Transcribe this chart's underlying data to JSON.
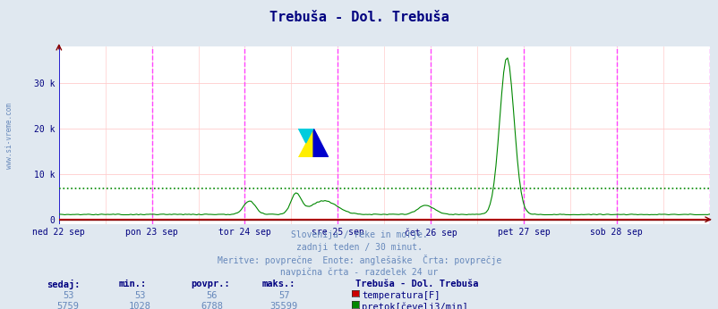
{
  "title": "Trebuša - Dol. Trebuša",
  "title_color": "#000080",
  "background_color": "#e0e8f0",
  "plot_bg_color": "#ffffff",
  "grid_color": "#ffcccc",
  "vline_color": "#ff44ff",
  "x_labels": [
    "ned 22 sep",
    "pon 23 sep",
    "tor 24 sep",
    "sre 25 sep",
    "čet 26 sep",
    "pet 27 sep",
    "sob 28 sep"
  ],
  "x_label_color": "#000080",
  "ytick_color": "#000080",
  "ymax": 38000,
  "y_ticks": [
    0,
    10000,
    20000,
    30000
  ],
  "y_tick_labels": [
    "0",
    "10 k",
    "20 k",
    "30 k"
  ],
  "temp_color": "#cc0000",
  "flow_color": "#008800",
  "flow_avg_value": 6788,
  "temp_avg_value": 56,
  "caption_lines": [
    "Slovenija / reke in morje.",
    "zadnji teden / 30 minut.",
    "Meritve: povprečne  Enote: anglešaške  Črta: povprečje",
    "navpična črta - razdelek 24 ur"
  ],
  "caption_color": "#6688bb",
  "stats_headers": [
    "sedaj:",
    "min.:",
    "povpr.:",
    "maks.:"
  ],
  "stats_header_color": "#000080",
  "stats_values_temp": [
    "53",
    "53",
    "56",
    "57"
  ],
  "stats_values_flow": [
    "5759",
    "1028",
    "6788",
    "35599"
  ],
  "stats_value_color": "#6688bb",
  "legend_label_temp": "temperatura[F]",
  "legend_label_flow": "pretok[čevelj3/min]",
  "legend_title": "Trebuša - Dol. Trebuša",
  "legend_color": "#000080",
  "n_points": 336,
  "left_label": "www.si-vreme.com",
  "left_label_color": "#6688bb"
}
